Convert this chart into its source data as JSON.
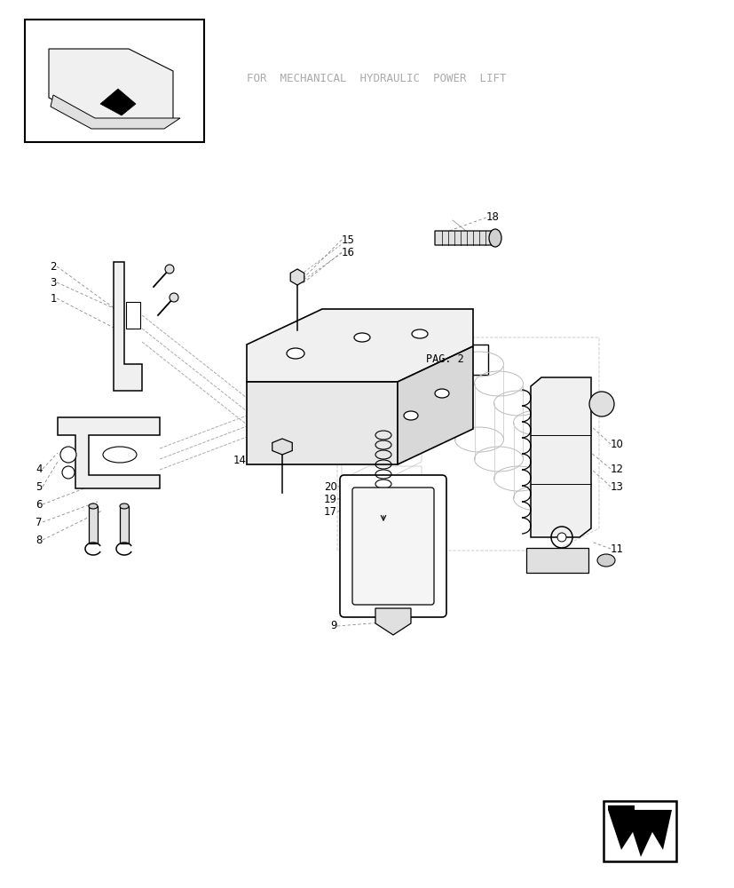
{
  "bg_color": "#ffffff",
  "line_color": "#000000",
  "light_line_color": "#aaaaaa",
  "text_color": "#aaaaaa",
  "title_text": "FOR  MECHANICAL  HYDRAULIC  POWER  LIFT",
  "pag_label": "PAG. 2",
  "part_labels": [
    "1",
    "2",
    "3",
    "4",
    "5",
    "6",
    "7",
    "8",
    "9",
    "10",
    "11",
    "12",
    "13",
    "14",
    "15",
    "16",
    "17",
    "18",
    "19",
    "20"
  ]
}
